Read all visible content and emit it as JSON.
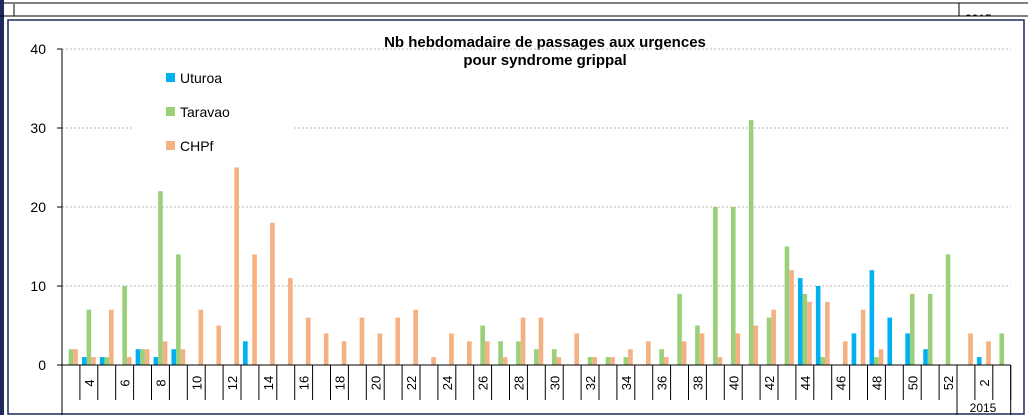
{
  "header_fragment": "2015",
  "chart_data": {
    "type": "bar",
    "title": "Nb hebdomadaire de passages aux urgences",
    "subtitle": "pour syndrome grippal",
    "categories": [
      null,
      "4",
      null,
      "6",
      null,
      "8",
      null,
      "10",
      null,
      "12",
      null,
      "14",
      null,
      "16",
      null,
      "18",
      null,
      "20",
      null,
      "22",
      null,
      "24",
      null,
      "26",
      null,
      "28",
      null,
      "30",
      null,
      "32",
      null,
      "34",
      null,
      "36",
      null,
      "38",
      null,
      "40",
      null,
      "42",
      null,
      "44",
      null,
      "46",
      null,
      "48",
      null,
      "50",
      null,
      "52",
      null,
      "2",
      null
    ],
    "x_group": "2015",
    "series": [
      {
        "name": "Uturoa",
        "color": "#00b0f0",
        "values": [
          0,
          1,
          1,
          0,
          2,
          1,
          2,
          0,
          0,
          0,
          3,
          0,
          0,
          0,
          0,
          0,
          0,
          0,
          0,
          0,
          0,
          0,
          0,
          0,
          0,
          0,
          0,
          0,
          0,
          0,
          0,
          0,
          0,
          0,
          0,
          0,
          0,
          0,
          0,
          0,
          0,
          11,
          10,
          0,
          4,
          12,
          6,
          4,
          2,
          0,
          0,
          1,
          0
        ]
      },
      {
        "name": "Taravao",
        "color": "#9bcf7a",
        "values": [
          2,
          7,
          1,
          10,
          2,
          22,
          14,
          0,
          0,
          0,
          0,
          0,
          0,
          0,
          0,
          0,
          0,
          0,
          0,
          0,
          0,
          0,
          0,
          5,
          3,
          3,
          2,
          2,
          0,
          1,
          1,
          1,
          0,
          2,
          9,
          5,
          20,
          20,
          31,
          6,
          15,
          9,
          1,
          0,
          0,
          1,
          0,
          9,
          9,
          14,
          0,
          0,
          4
        ]
      },
      {
        "name": "CHPf",
        "color": "#f4b183",
        "values": [
          2,
          1,
          7,
          1,
          2,
          3,
          2,
          7,
          5,
          25,
          14,
          18,
          11,
          6,
          4,
          3,
          6,
          4,
          6,
          7,
          1,
          4,
          3,
          3,
          1,
          6,
          6,
          1,
          4,
          1,
          1,
          2,
          3,
          1,
          3,
          4,
          1,
          4,
          5,
          7,
          12,
          8,
          8,
          3,
          7,
          2,
          0,
          0,
          0,
          0,
          4,
          3,
          0
        ]
      }
    ],
    "ylim": [
      0,
      40
    ],
    "yticks": [
      0,
      10,
      20,
      30,
      40
    ],
    "grid": true
  }
}
